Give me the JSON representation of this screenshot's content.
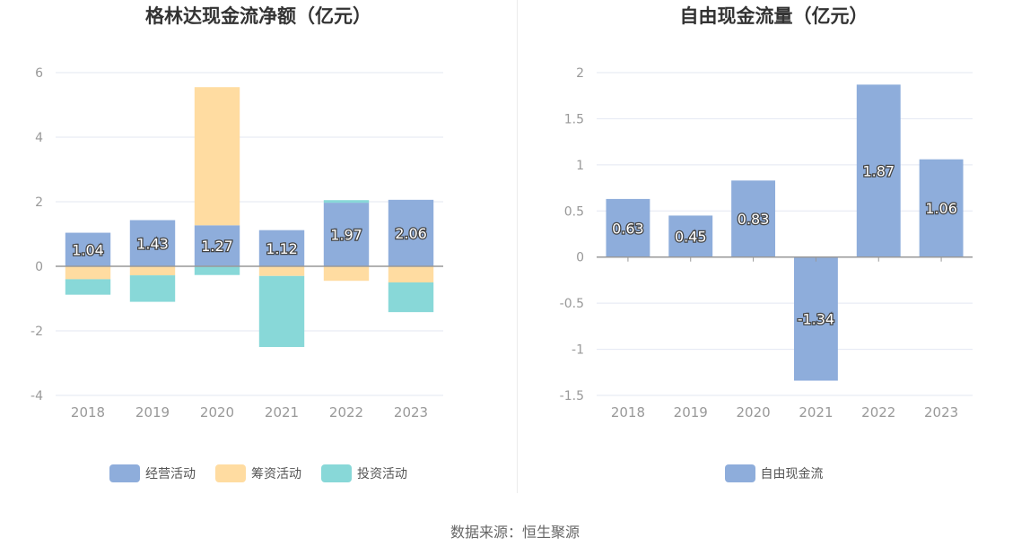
{
  "colors": {
    "operating": "#8EADDB",
    "financing": "#FFDCA1",
    "investing": "#88D8D8",
    "free_cash_flow": "#8EADDB",
    "grid": "#E3E7F2",
    "axis": "#999999",
    "tick_text": "#999999"
  },
  "chart_data": [
    {
      "type": "bar",
      "stacked": true,
      "title": "格林达现金流净额（亿元）",
      "categories": [
        "2018",
        "2019",
        "2020",
        "2021",
        "2022",
        "2023"
      ],
      "ylim": [
        -4,
        6
      ],
      "yticks": [
        -4,
        -2,
        0,
        2,
        4,
        6
      ],
      "ytick_labels": [
        "-4",
        "-2",
        "0",
        "2",
        "4",
        "6"
      ],
      "series": [
        {
          "name": "经营活动",
          "values": [
            1.04,
            1.43,
            1.27,
            1.12,
            1.97,
            2.06
          ],
          "labels": [
            "1.04",
            "1.43",
            "1.27",
            "1.12",
            "1.97",
            "2.06"
          ]
        },
        {
          "name": "筹资活动",
          "values": [
            -0.4,
            -0.28,
            4.28,
            -0.3,
            -0.45,
            -0.5
          ]
        },
        {
          "name": "投资活动",
          "values": [
            -0.48,
            -0.82,
            -0.27,
            -2.2,
            0.08,
            -0.92
          ]
        }
      ],
      "legend": "bottom-center"
    },
    {
      "type": "bar",
      "title": "自由现金流量（亿元）",
      "categories": [
        "2018",
        "2019",
        "2020",
        "2021",
        "2022",
        "2023"
      ],
      "ylim": [
        -1.5,
        2
      ],
      "yticks": [
        -1.5,
        -1,
        -0.5,
        0,
        0.5,
        1,
        1.5,
        2
      ],
      "ytick_labels": [
        "-1.5",
        "-1",
        "-0.5",
        "0",
        "0.5",
        "1",
        "1.5",
        "2"
      ],
      "series": [
        {
          "name": "自由现金流",
          "values": [
            0.63,
            0.45,
            0.83,
            -1.34,
            1.87,
            1.06
          ],
          "labels": [
            "0.63",
            "0.45",
            "0.83",
            "-1.34",
            "1.87",
            "1.06"
          ]
        }
      ],
      "legend": "bottom-center"
    }
  ],
  "source": "数据来源：恒生聚源"
}
